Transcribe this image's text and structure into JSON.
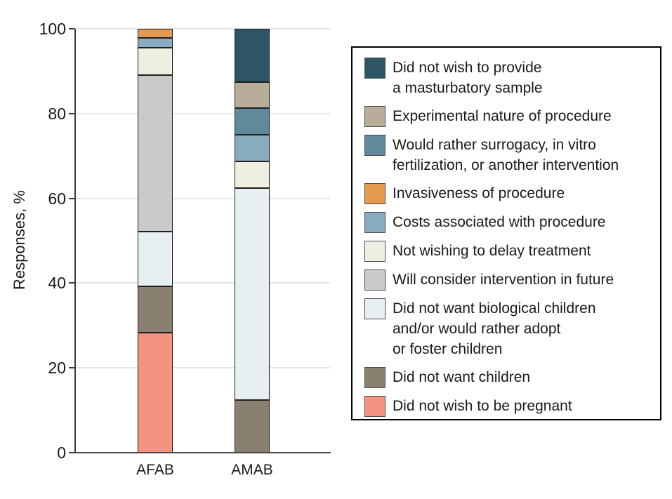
{
  "chart_data": {
    "type": "bar",
    "subtype": "stacked",
    "title": "",
    "ylabel": "Responses, %",
    "xlabel": "",
    "ylim": [
      0,
      100
    ],
    "yticks": [
      0,
      20,
      40,
      60,
      80,
      100
    ],
    "grid": true,
    "legend_position": "right",
    "categories": [
      "AFAB",
      "AMAB"
    ],
    "series": [
      {
        "name": "Did not wish to be pregnant",
        "color": "#f2947f",
        "values": [
          28.3,
          0
        ]
      },
      {
        "name": "Did not want children",
        "color": "#8a8071",
        "values": [
          10.9,
          12.5
        ]
      },
      {
        "name": "Did not want biological children and/or would rather adopt or foster children",
        "color": "#e7eff3",
        "values": [
          13.0,
          50.0
        ]
      },
      {
        "name": "Will consider intervention in future",
        "color": "#c8cacc",
        "values": [
          36.9,
          0
        ]
      },
      {
        "name": "Not wishing to delay treatment",
        "color": "#eeeee1",
        "values": [
          6.5,
          6.25
        ]
      },
      {
        "name": "Costs associated with procedure",
        "color": "#89acc0",
        "values": [
          2.2,
          6.25
        ]
      },
      {
        "name": "Invasiveness of procedure",
        "color": "#e59a52",
        "values": [
          2.2,
          0
        ]
      },
      {
        "name": "Would rather surrogacy, in vitro fertilization, or another intervention",
        "color": "#60899b",
        "values": [
          0,
          6.25
        ]
      },
      {
        "name": "Experimental nature of procedure",
        "color": "#b7ad9a",
        "values": [
          0,
          6.25
        ]
      },
      {
        "name": "Did not wish to provide a masturbatory sample",
        "color": "#2e5565",
        "values": [
          0,
          12.5
        ]
      }
    ],
    "legend": [
      {
        "label": "Did not wish to provide\na masturbatory sample",
        "color": "#2e5565"
      },
      {
        "label": "Experimental nature of procedure",
        "color": "#b7ad9a"
      },
      {
        "label": "Would rather surrogacy, in vitro\nfertilization, or another intervention",
        "color": "#60899b"
      },
      {
        "label": "Invasiveness of procedure",
        "color": "#e59a52"
      },
      {
        "label": "Costs associated with procedure",
        "color": "#89acc0"
      },
      {
        "label": "Not wishing to delay treatment",
        "color": "#eeeee1"
      },
      {
        "label": "Will consider intervention in future",
        "color": "#c8cacc"
      },
      {
        "label": "Did not want biological children\nand/or would rather adopt\nor foster children",
        "color": "#e7eff3"
      },
      {
        "label": "Did not want children",
        "color": "#8a8071"
      },
      {
        "label": "Did not wish to be pregnant",
        "color": "#f2947f"
      }
    ]
  }
}
